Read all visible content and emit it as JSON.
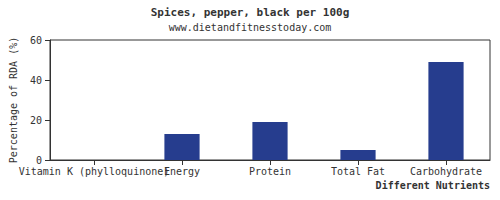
{
  "chart_data": {
    "type": "bar",
    "title": "Spices, pepper, black per 100g",
    "subtitle": "www.dietandfitnesstoday.com",
    "x_label": "Different Nutrients",
    "y_label": "Percentage of RDA (%)",
    "categories": [
      "Vitamin K (phylloquinone)",
      "Energy",
      "Protein",
      "Total Fat",
      "Carbohydrate"
    ],
    "values": [
      0,
      13,
      19,
      5,
      49
    ],
    "color": "#263d8e",
    "ylim": [
      0,
      60
    ],
    "yticks": [
      0,
      20,
      40,
      60
    ],
    "grid": false
  }
}
